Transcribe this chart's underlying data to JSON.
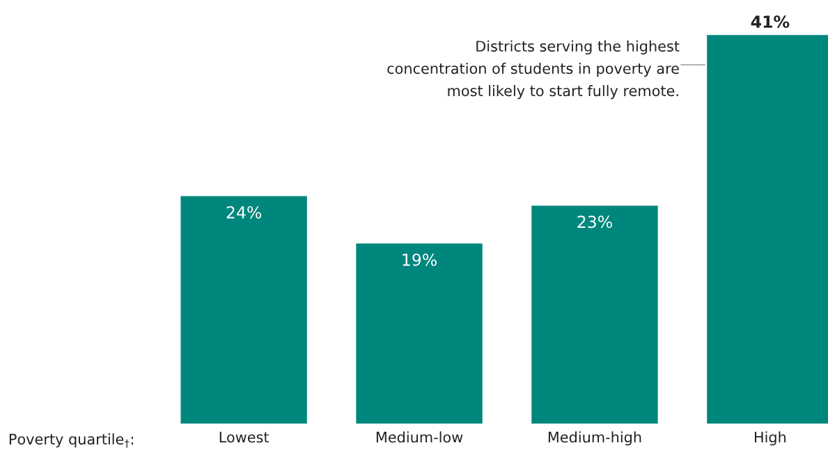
{
  "chart_data": {
    "type": "bar",
    "categories": [
      "Lowest",
      "Medium-low",
      "Medium-high",
      "High"
    ],
    "values": [
      24,
      19,
      23,
      41
    ],
    "value_labels": [
      "24%",
      "19%",
      "23%",
      "41%"
    ],
    "color": "#00877d",
    "xlabel": "Poverty quartile$_{†}$:",
    "annotations": [
      "Districts serving the highest\nconcentration of students in poverty are\nmost likely to start fully remote."
    ]
  }
}
